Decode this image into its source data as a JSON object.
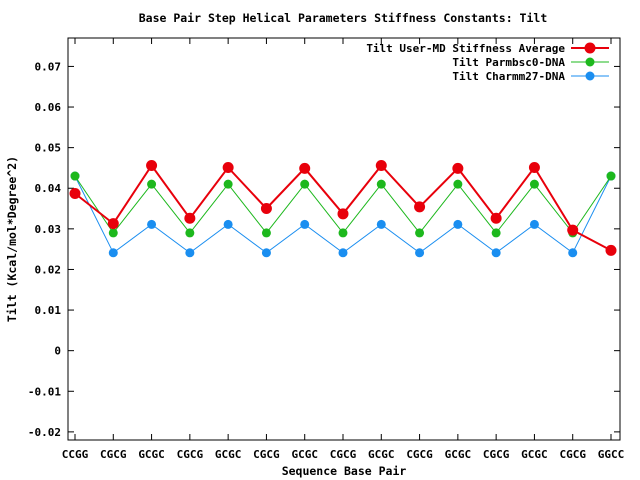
{
  "chart_data": {
    "type": "line",
    "title": "Base Pair Step Helical Parameters Stiffness Constants: Tilt",
    "xlabel": "Sequence Base Pair",
    "ylabel": "Tilt (Kcal/mol*Degree^2)",
    "ylim": [
      -0.022,
      0.077
    ],
    "yticks": [
      -0.02,
      -0.01,
      0,
      0.01,
      0.02,
      0.03,
      0.04,
      0.05,
      0.06,
      0.07
    ],
    "ytick_labels": [
      "-0.02",
      "-0.01",
      "0",
      "0.01",
      "0.02",
      "0.03",
      "0.04",
      "0.05",
      "0.06",
      "0.07"
    ],
    "categories": [
      "CCGG",
      "CGCG",
      "GCGC",
      "CGCG",
      "GCGC",
      "CGCG",
      "GCGC",
      "CGCG",
      "GCGC",
      "CGCG",
      "GCGC",
      "CGCG",
      "GCGC",
      "CGCG",
      "GGCC"
    ],
    "grid": false,
    "legend_position": "top-right",
    "series": [
      {
        "name": "Tilt User-MD Stiffness Average",
        "color": "#e8000b",
        "values": [
          0.0387,
          0.0313,
          0.0456,
          0.0326,
          0.0451,
          0.035,
          0.0449,
          0.0337,
          0.0456,
          0.0354,
          0.0449,
          0.0326,
          0.0451,
          0.0297,
          0.0247
        ]
      },
      {
        "name": "Tilt Parmbsc0-DNA",
        "color": "#1db81d",
        "values": [
          0.043,
          0.029,
          0.041,
          0.029,
          0.041,
          0.029,
          0.041,
          0.029,
          0.041,
          0.029,
          0.041,
          0.029,
          0.041,
          0.029,
          0.043
        ]
      },
      {
        "name": "Tilt Charmm27-DNA",
        "color": "#1a8ef0",
        "values": [
          0.043,
          0.0241,
          0.0311,
          0.0241,
          0.0311,
          0.0241,
          0.0311,
          0.0241,
          0.0311,
          0.0241,
          0.0311,
          0.0241,
          0.0311,
          0.0241,
          0.043
        ]
      }
    ]
  }
}
